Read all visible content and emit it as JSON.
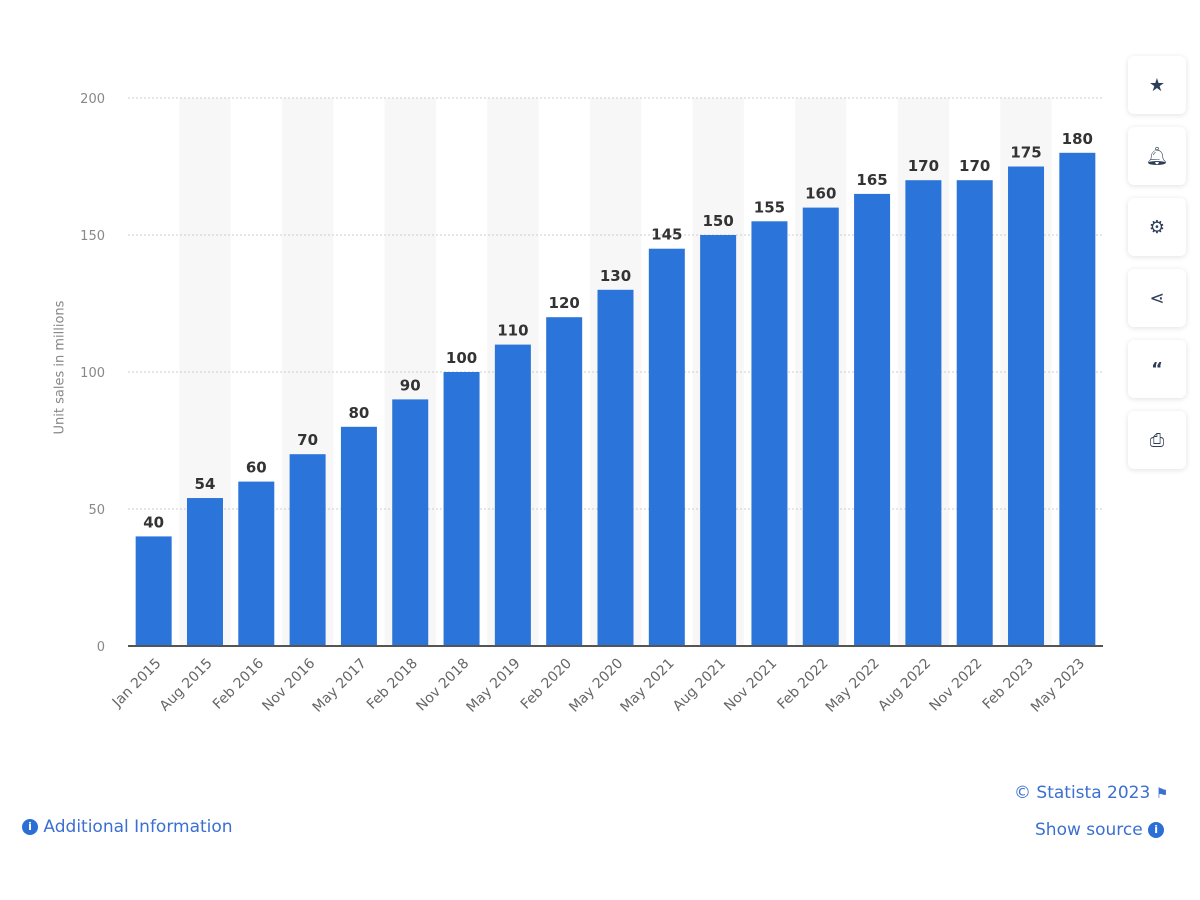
{
  "chart_data": {
    "type": "bar",
    "categories": [
      "Jan 2015",
      "Aug 2015",
      "Feb 2016",
      "Nov 2016",
      "May 2017",
      "Feb 2018",
      "Nov 2018",
      "May 2019",
      "Feb 2020",
      "May 2020",
      "May 2021",
      "Aug 2021",
      "Nov 2021",
      "Feb 2022",
      "May 2022",
      "Aug 2022",
      "Nov 2022",
      "Feb 2023",
      "May 2023"
    ],
    "values": [
      40,
      54,
      60,
      70,
      80,
      90,
      100,
      110,
      120,
      130,
      145,
      150,
      155,
      160,
      165,
      170,
      170,
      175,
      180
    ],
    "ylabel": "Unit sales in millions",
    "ylim": [
      0,
      200
    ],
    "yticks": [
      0,
      50,
      100,
      150,
      200
    ],
    "grid": true,
    "bar_color": "#2b74d9"
  },
  "toolbar": {
    "icons": [
      "star-icon",
      "bell-icon",
      "gear-icon",
      "share-icon",
      "quote-icon",
      "print-icon"
    ]
  },
  "footer": {
    "copyright": "© Statista 2023",
    "show_source": "Show source",
    "additional_info": "Additional Information"
  }
}
